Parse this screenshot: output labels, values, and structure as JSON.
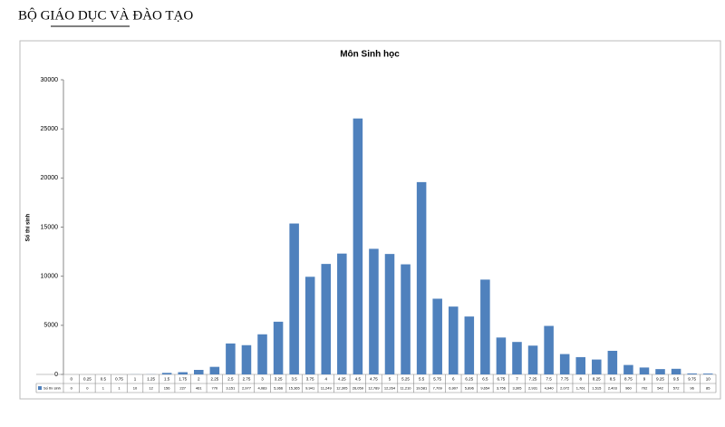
{
  "header": {
    "title": "BỘ GIÁO DỤC VÀ ĐÀO TẠO"
  },
  "chart_data": {
    "type": "bar",
    "title": "Môn Sinh học",
    "y_label": "Số thí sinh",
    "categories": [
      "0",
      "0.25",
      "0.5",
      "0.75",
      "1",
      "1.25",
      "1.5",
      "1.75",
      "2",
      "2.25",
      "2.5",
      "2.75",
      "3",
      "3.25",
      "3.5",
      "3.75",
      "4",
      "4.25",
      "4.5",
      "4.75",
      "5",
      "5.25",
      "5.5",
      "5.75",
      "6",
      "6.25",
      "6.5",
      "6.75",
      "7",
      "7.25",
      "7.5",
      "7.75",
      "8",
      "8.25",
      "8.5",
      "8.75",
      "9",
      "9.25",
      "9.5",
      "9.75",
      "10"
    ],
    "series": [
      {
        "name": "Số thí sinh",
        "color": "#4f81bd",
        "values": [
          0,
          0,
          1,
          1,
          10,
          12,
          156,
          227,
          461,
          770,
          3151,
          2977,
          4083,
          5366,
          15365,
          9941,
          11249,
          12305,
          26059,
          12789,
          12264,
          11210,
          19581,
          7709,
          6907,
          5896,
          9654,
          3756,
          3305,
          2931,
          4940,
          2072,
          1761,
          1515,
          2403,
          960,
          702,
          542,
          572,
          96,
          85
        ],
        "value_labels": [
          "0",
          "0",
          "1",
          "1",
          "10",
          "12",
          "156",
          "227",
          "461",
          "770",
          "3,151",
          "2,977",
          "4,083",
          "5,366",
          "15,365",
          "9,941",
          "11,249",
          "12,305",
          "26,059",
          "12,789",
          "12,264",
          "11,210",
          "19,581",
          "7,709",
          "6,907",
          "5,896",
          "9,654",
          "3,756",
          "3,305",
          "2,931",
          "4,940",
          "2,072",
          "1,761",
          "1,515",
          "2,403",
          "960",
          "702",
          "542",
          "572",
          "96",
          "85"
        ]
      }
    ],
    "ylim": [
      0,
      30000
    ],
    "yticks": [
      0,
      5000,
      10000,
      15000,
      20000,
      25000,
      30000
    ],
    "grid": false
  }
}
